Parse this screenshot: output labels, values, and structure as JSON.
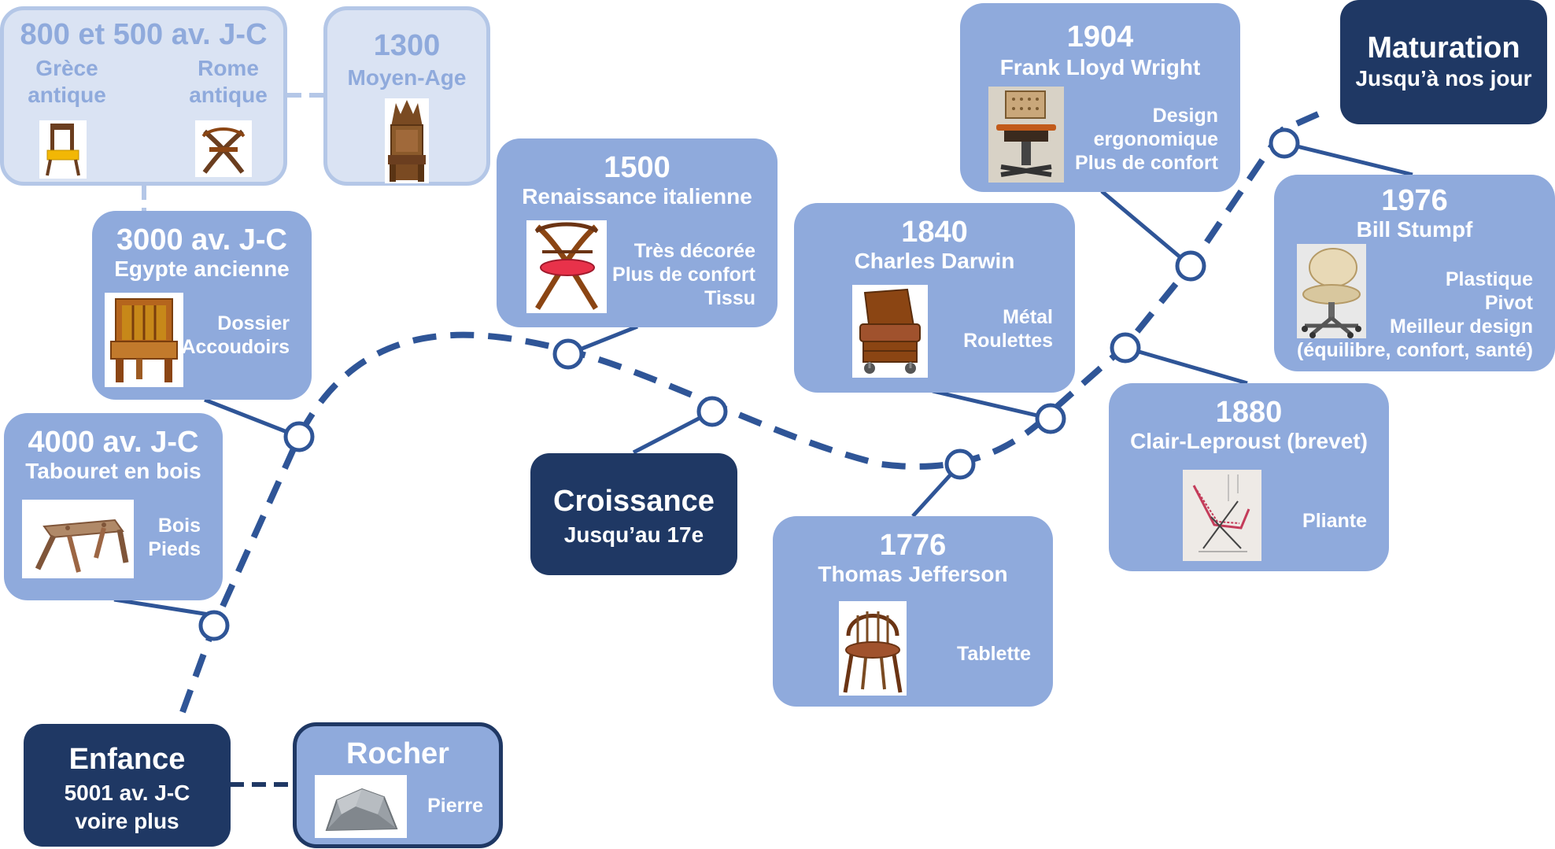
{
  "phases": {
    "enfance": {
      "title": "Enfance",
      "line1": "5001 av. J-C",
      "line2": "voire plus"
    },
    "croissance": {
      "title": "Croissance",
      "subtitle": "Jusqu’au 17e"
    },
    "maturation": {
      "title": "Maturation",
      "subtitle": "Jusqu’à nos jour"
    }
  },
  "milestones": {
    "rocher": {
      "title": "Rocher",
      "features": [
        "Pierre"
      ],
      "image": "rock-icon"
    },
    "tabouret": {
      "year": "4000 av. J-C",
      "subtitle": "Tabouret en bois",
      "features": [
        "Bois",
        "Pieds"
      ],
      "image": "wooden-stool-icon"
    },
    "egypte": {
      "year": "3000 av. J-C",
      "subtitle": "Egypte ancienne",
      "features": [
        "Dossier",
        "Accoudoirs"
      ],
      "image": "egyptian-chair-icon"
    },
    "antique": {
      "year": "800 et 500 av. J-C",
      "left_caption": [
        "Grèce",
        "antique"
      ],
      "right_caption": [
        "Rome",
        "antique"
      ],
      "images": [
        "greek-chair-icon",
        "roman-chair-icon"
      ]
    },
    "moyen_age": {
      "year": "1300",
      "subtitle": "Moyen-Age",
      "image": "gothic-throne-icon"
    },
    "renaissance": {
      "year": "1500",
      "subtitle": "Renaissance italienne",
      "features": [
        "Très décorée",
        "Plus de confort",
        "Tissu"
      ],
      "image": "renaissance-chair-icon"
    },
    "jefferson": {
      "year": "1776",
      "subtitle": "Thomas Jefferson",
      "features": [
        "Tablette"
      ],
      "image": "windsor-chair-icon"
    },
    "darwin": {
      "year": "1840",
      "subtitle": "Charles Darwin",
      "features": [
        "Métal",
        "Roulettes"
      ],
      "image": "wheeled-armchair-icon"
    },
    "leproust": {
      "year": "1880",
      "subtitle": "Clair-Leproust (brevet)",
      "features": [
        "Pliante"
      ],
      "image": "patent-sketch-icon"
    },
    "wright": {
      "year": "1904",
      "subtitle": "Frank Lloyd Wright",
      "features": [
        "Design",
        "ergonomique",
        "Plus de confort"
      ],
      "image": "wright-office-chair-icon"
    },
    "stumpf": {
      "year": "1976",
      "subtitle": "Bill Stumpf",
      "features": [
        "Plastique",
        "Pivot",
        "Meilleur design",
        "(équilibre, confort, santé)"
      ],
      "image": "ergonomic-office-chair-icon"
    }
  },
  "colors": {
    "dark": "#1f3864",
    "card": "#8faadc",
    "faded_bg": "#dae3f3",
    "faded_border": "#b4c7e7"
  }
}
